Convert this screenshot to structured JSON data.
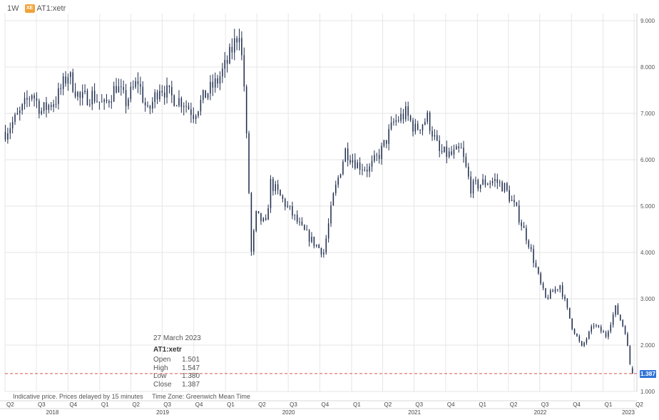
{
  "header": {
    "interval": "1W",
    "exchange_icon": "xetra-exchange-icon",
    "exchange_icon_text": "XE",
    "symbol": "AT1:xetr"
  },
  "tooltip": {
    "date": "27 March 2023",
    "symbol": "AT1:xetr",
    "rows": [
      {
        "label": "Open",
        "value": "1.501"
      },
      {
        "label": "High",
        "value": "1.547"
      },
      {
        "label": "Low",
        "value": "1.380"
      },
      {
        "label": "Close",
        "value": "1.387"
      }
    ]
  },
  "footer": {
    "delay_note": "Indicative price. Prices delayed by 15 minutes",
    "timezone": "Time Zone: Greenwich Mean Time"
  },
  "last_price": "1.387",
  "colors": {
    "candle": "#1f2d4d",
    "grid": "#e6e6e6",
    "last_price_line": "#d9534f",
    "last_price_tag": "#2f73d8"
  },
  "chart_data": {
    "type": "candlestick",
    "interval": "weekly",
    "ylim": [
      1.0,
      9.0
    ],
    "y_ticks": [
      "1.000",
      "2.000",
      "3.000",
      "4.000",
      "5.000",
      "6.000",
      "7.000",
      "8.000",
      "9.000"
    ],
    "x_quarter_ticks": [
      "Q2",
      "Q3",
      "Q4",
      "Q1",
      "Q2",
      "Q3",
      "Q4",
      "Q1",
      "Q2",
      "Q3",
      "Q4",
      "Q1",
      "Q2",
      "Q3",
      "Q4",
      "Q1",
      "Q2",
      "Q3",
      "Q4",
      "Q1",
      "Q2"
    ],
    "x_year_labels": [
      "2018",
      "2019",
      "2020",
      "2021",
      "2022",
      "2023"
    ],
    "grid": true,
    "last_price": 1.387,
    "anchors": [
      [
        "2018-04-02",
        6.6
      ],
      [
        "2018-05-14",
        7.0
      ],
      [
        "2018-06-18",
        7.45
      ],
      [
        "2018-07-16",
        7.05
      ],
      [
        "2018-08-27",
        7.3
      ],
      [
        "2018-10-01",
        7.85
      ],
      [
        "2018-11-05",
        7.3
      ],
      [
        "2018-12-10",
        7.4
      ],
      [
        "2019-01-14",
        7.15
      ],
      [
        "2019-02-18",
        7.6
      ],
      [
        "2019-03-18",
        7.25
      ],
      [
        "2019-04-22",
        7.7
      ],
      [
        "2019-05-20",
        7.0
      ],
      [
        "2019-06-24",
        7.6
      ],
      [
        "2019-07-29",
        7.35
      ],
      [
        "2019-09-02",
        7.25
      ],
      [
        "2019-09-30",
        7.0
      ],
      [
        "2019-11-04",
        7.4
      ],
      [
        "2019-12-09",
        7.7
      ],
      [
        "2020-01-06",
        8.1
      ],
      [
        "2020-02-10",
        8.8
      ],
      [
        "2020-02-24",
        7.6
      ],
      [
        "2020-03-09",
        5.3
      ],
      [
        "2020-03-16",
        4.0
      ],
      [
        "2020-03-30",
        4.8
      ],
      [
        "2020-04-27",
        4.6
      ],
      [
        "2020-05-11",
        5.5
      ],
      [
        "2020-06-08",
        5.2
      ],
      [
        "2020-07-06",
        4.9
      ],
      [
        "2020-08-10",
        4.5
      ],
      [
        "2020-09-14",
        4.2
      ],
      [
        "2020-10-12",
        4.0
      ],
      [
        "2020-11-09",
        5.2
      ],
      [
        "2020-12-14",
        6.2
      ],
      [
        "2021-01-18",
        5.9
      ],
      [
        "2021-02-22",
        5.8
      ],
      [
        "2021-03-29",
        6.2
      ],
      [
        "2021-05-03",
        6.8
      ],
      [
        "2021-06-07",
        7.0
      ],
      [
        "2021-07-05",
        6.65
      ],
      [
        "2021-08-09",
        6.9
      ],
      [
        "2021-09-13",
        6.15
      ],
      [
        "2021-10-18",
        6.1
      ],
      [
        "2021-11-15",
        6.2
      ],
      [
        "2021-12-13",
        5.4
      ],
      [
        "2022-01-17",
        5.5
      ],
      [
        "2022-02-21",
        5.55
      ],
      [
        "2022-03-21",
        5.4
      ],
      [
        "2022-04-25",
        4.9
      ],
      [
        "2022-05-30",
        4.2
      ],
      [
        "2022-07-04",
        3.3
      ],
      [
        "2022-07-18",
        3.0
      ],
      [
        "2022-08-29",
        3.3
      ],
      [
        "2022-10-03",
        2.4
      ],
      [
        "2022-10-31",
        1.95
      ],
      [
        "2022-12-05",
        2.45
      ],
      [
        "2023-01-09",
        2.2
      ],
      [
        "2023-02-06",
        2.8
      ],
      [
        "2023-03-06",
        2.3
      ],
      [
        "2023-03-20",
        1.6
      ],
      [
        "2023-03-27",
        1.387
      ]
    ]
  }
}
